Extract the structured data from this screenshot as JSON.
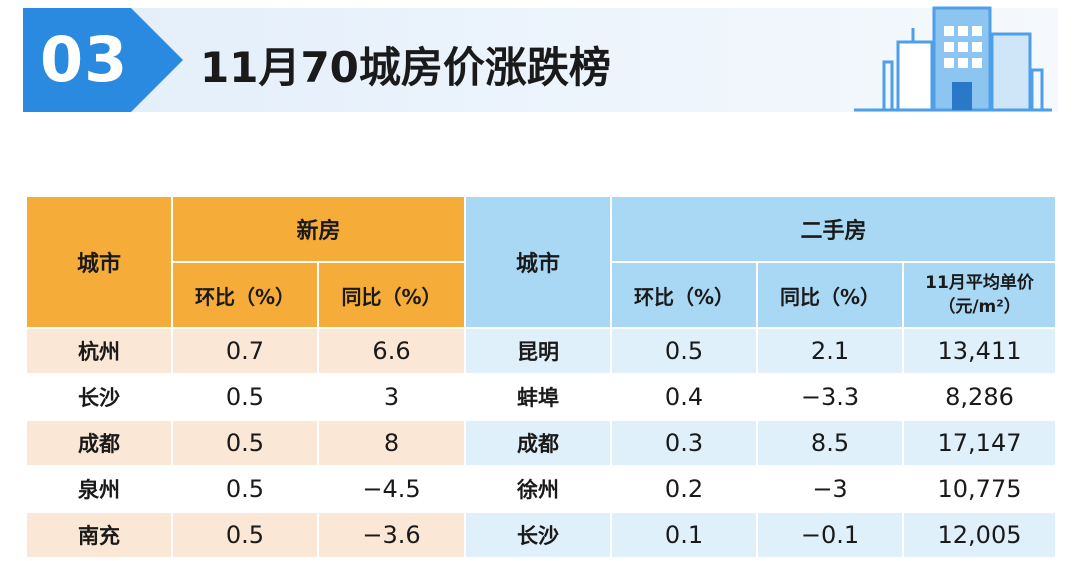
{
  "header": {
    "number": "03",
    "title": "11月70城房价涨跌榜"
  },
  "colors": {
    "accent_blue": "#2a8ae0",
    "new_header": "#f5ac38",
    "used_header": "#a9d8f4",
    "new_stripe": "#fbe7d5",
    "used_stripe": "#dff0fb"
  },
  "table": {
    "new": {
      "city_header": "城市",
      "group_header": "新房",
      "mom_header": "环比（%）",
      "yoy_header": "同比（%）"
    },
    "used": {
      "city_header": "城市",
      "group_header": "二手房",
      "mom_header": "环比（%）",
      "yoy_header": "同比（%）",
      "price_header_line1": "11月平均单价",
      "price_header_line2": "（元/m²）"
    },
    "rows": [
      {
        "new_city": "杭州",
        "new_mom": "0.7",
        "new_yoy": "6.6",
        "used_city": "昆明",
        "used_mom": "0.5",
        "used_yoy": "2.1",
        "used_price": "13,411"
      },
      {
        "new_city": "长沙",
        "new_mom": "0.5",
        "new_yoy": "3",
        "used_city": "蚌埠",
        "used_mom": "0.4",
        "used_yoy": "−3.3",
        "used_price": "8,286"
      },
      {
        "new_city": "成都",
        "new_mom": "0.5",
        "new_yoy": "8",
        "used_city": "成都",
        "used_mom": "0.3",
        "used_yoy": "8.5",
        "used_price": "17,147"
      },
      {
        "new_city": "泉州",
        "new_mom": "0.5",
        "new_yoy": "−4.5",
        "used_city": "徐州",
        "used_mom": "0.2",
        "used_yoy": "−3",
        "used_price": "10,775"
      },
      {
        "new_city": "南充",
        "new_mom": "0.5",
        "new_yoy": "−3.6",
        "used_city": "长沙",
        "used_mom": "0.1",
        "used_yoy": "−0.1",
        "used_price": "12,005"
      }
    ]
  }
}
